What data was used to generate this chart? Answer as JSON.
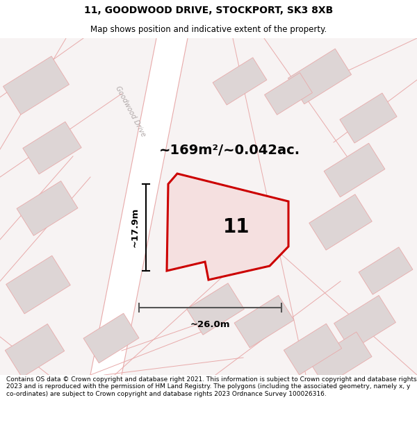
{
  "title": "11, GOODWOOD DRIVE, STOCKPORT, SK3 8XB",
  "subtitle": "Map shows position and indicative extent of the property.",
  "area_label": "~169m²/~0.042ac.",
  "number_label": "11",
  "width_label": "~26.0m",
  "height_label": "~17.9m",
  "footer": "Contains OS data © Crown copyright and database right 2021. This information is subject to Crown copyright and database rights 2023 and is reproduced with the permission of HM Land Registry. The polygons (including the associated geometry, namely x, y co-ordinates) are subject to Crown copyright and database rights 2023 Ordnance Survey 100026316.",
  "map_bg": "#f7f3f3",
  "plot_color": "#cc0000",
  "plot_fill": "#f5e0e0",
  "road_color": "#e8aaaa",
  "building_fill": "#ddd5d5",
  "building_edge": "#e8aaaa",
  "street_label": "Goodwood Drive",
  "figsize": [
    6.0,
    6.25
  ],
  "dpi": 100,
  "title_fontsize": 10,
  "subtitle_fontsize": 8.5,
  "footer_fontsize": 6.5
}
